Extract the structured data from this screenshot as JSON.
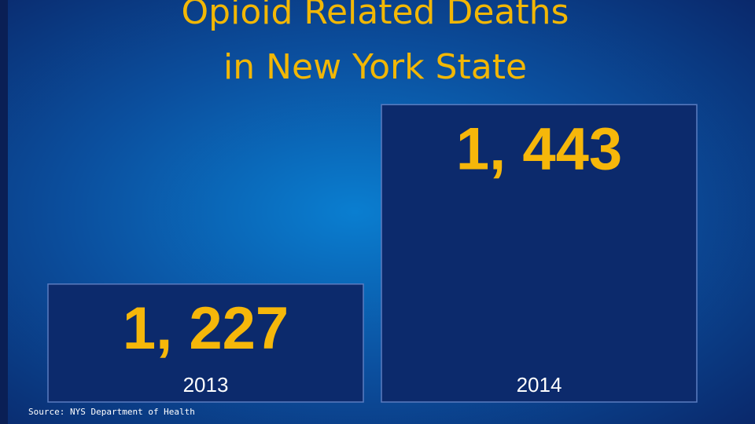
{
  "chart_data": {
    "type": "bar",
    "title": [
      "Opioid Related Deaths",
      "in New York State"
    ],
    "categories": [
      "2013",
      "2014"
    ],
    "values": [
      1227,
      1443
    ],
    "value_labels": [
      "1, 227",
      "1, 443"
    ],
    "color": "#0c2a6c",
    "ylim": [
      1085,
      1500
    ],
    "source": "Source: NYS Department of Health"
  }
}
